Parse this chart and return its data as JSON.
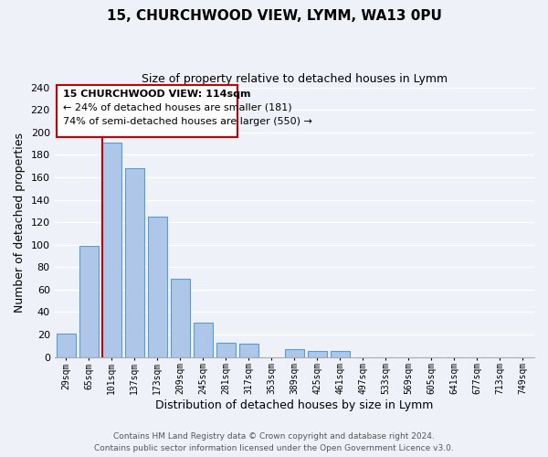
{
  "title_line1": "15, CHURCHWOOD VIEW, LYMM, WA13 0PU",
  "title_line2": "Size of property relative to detached houses in Lymm",
  "xlabel": "Distribution of detached houses by size in Lymm",
  "ylabel": "Number of detached properties",
  "bar_labels": [
    "29sqm",
    "65sqm",
    "101sqm",
    "137sqm",
    "173sqm",
    "209sqm",
    "245sqm",
    "281sqm",
    "317sqm",
    "353sqm",
    "389sqm",
    "425sqm",
    "461sqm",
    "497sqm",
    "533sqm",
    "569sqm",
    "605sqm",
    "641sqm",
    "677sqm",
    "713sqm",
    "749sqm"
  ],
  "bar_values": [
    21,
    99,
    191,
    168,
    125,
    70,
    31,
    13,
    12,
    0,
    7,
    5,
    5,
    0,
    0,
    0,
    0,
    0,
    0,
    0,
    0
  ],
  "bar_color": "#aec6e8",
  "bar_edge_color": "#5b9bd5",
  "property_line_color": "#cc0000",
  "property_line_bar_index": 2,
  "ylim": [
    0,
    240
  ],
  "yticks": [
    0,
    20,
    40,
    60,
    80,
    100,
    120,
    140,
    160,
    180,
    200,
    220,
    240
  ],
  "annotation_text_line1": "15 CHURCHWOOD VIEW: 114sqm",
  "annotation_text_line2": "← 24% of detached houses are smaller (181)",
  "annotation_text_line3": "74% of semi-detached houses are larger (550) →",
  "footer_line1": "Contains HM Land Registry data © Crown copyright and database right 2024.",
  "footer_line2": "Contains public sector information licensed under the Open Government Licence v3.0.",
  "background_color": "#eef2f8",
  "grid_color": "#ffffff"
}
